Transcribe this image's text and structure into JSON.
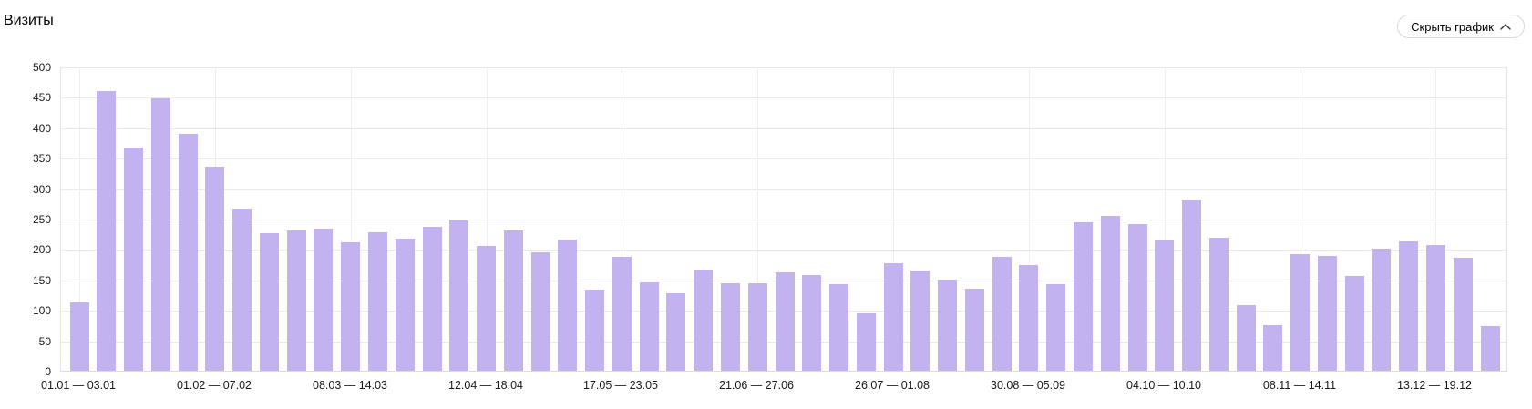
{
  "title": "Визиты",
  "toggle_button": {
    "label": "Скрыть график",
    "icon": "chevron-up-icon"
  },
  "colors": {
    "bar": "#c2b3f0",
    "gridline": "#e9e9e9",
    "axis_line": "#dcdcdc",
    "label_text": "#1a1a1a",
    "button_border": "#d9d9d9"
  },
  "chart_data": {
    "type": "bar",
    "title": "Визиты",
    "xlabel": "",
    "ylabel": "",
    "ylim": [
      0,
      500
    ],
    "y_ticks": [
      0,
      50,
      100,
      150,
      200,
      250,
      300,
      350,
      400,
      450,
      500
    ],
    "grid": true,
    "legend": false,
    "bar_color": "#c2b3f0",
    "values": [
      112,
      460,
      367,
      447,
      389,
      335,
      267,
      226,
      231,
      233,
      211,
      228,
      217,
      236,
      247,
      205,
      231,
      194,
      216,
      133,
      187,
      145,
      127,
      166,
      143,
      143,
      161,
      157,
      142,
      95,
      176,
      165,
      150,
      134,
      187,
      173,
      142,
      244,
      255,
      241,
      214,
      280,
      218,
      108,
      75,
      191,
      188,
      155,
      201,
      212,
      207,
      185,
      74
    ],
    "x_tick_labels": [
      {
        "index": 0,
        "label": "01.01 — 03.01"
      },
      {
        "index": 5,
        "label": "01.02 — 07.02"
      },
      {
        "index": 10,
        "label": "08.03 — 14.03"
      },
      {
        "index": 15,
        "label": "12.04 — 18.04"
      },
      {
        "index": 20,
        "label": "17.05 — 23.05"
      },
      {
        "index": 25,
        "label": "21.06 — 27.06"
      },
      {
        "index": 30,
        "label": "26.07 — 01.08"
      },
      {
        "index": 35,
        "label": "30.08 — 05.09"
      },
      {
        "index": 40,
        "label": "04.10 — 10.10"
      },
      {
        "index": 45,
        "label": "08.11 — 14.11"
      },
      {
        "index": 50,
        "label": "13.12 — 19.12"
      }
    ]
  }
}
